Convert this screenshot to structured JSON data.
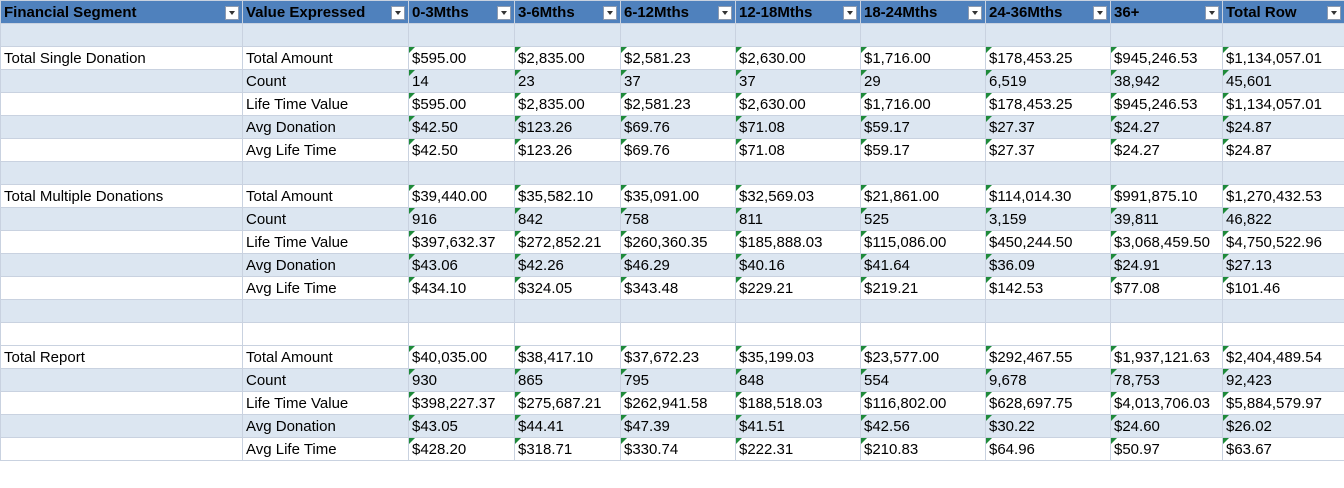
{
  "headers": [
    "Financial Segment",
    "Value Expressed",
    "0-3Mths",
    "3-6Mths",
    "6-12Mths",
    "12-18Mths",
    "18-24Mths",
    "24-36Mths",
    "36+",
    "Total Row"
  ],
  "rows": [
    {
      "band": true,
      "cells": [
        "",
        "",
        "",
        "",
        "",
        "",
        "",
        "",
        "",
        ""
      ]
    },
    {
      "band": false,
      "cells": [
        "Total Single Donation",
        "Total Amount",
        "$595.00",
        "$2,835.00",
        "$2,581.23",
        "$2,630.00",
        "$1,716.00",
        "$178,453.25",
        "$945,246.53",
        "$1,134,057.01"
      ]
    },
    {
      "band": true,
      "cells": [
        "",
        "Count",
        "14",
        "23",
        "37",
        "37",
        "29",
        "6,519",
        "38,942",
        "45,601"
      ]
    },
    {
      "band": false,
      "cells": [
        "",
        "Life Time Value",
        "$595.00",
        "$2,835.00",
        "$2,581.23",
        "$2,630.00",
        "$1,716.00",
        "$178,453.25",
        "$945,246.53",
        "$1,134,057.01"
      ]
    },
    {
      "band": true,
      "cells": [
        "",
        "Avg Donation",
        "$42.50",
        "$123.26",
        "$69.76",
        "$71.08",
        "$59.17",
        "$27.37",
        "$24.27",
        "$24.87"
      ]
    },
    {
      "band": false,
      "cells": [
        "",
        "Avg Life Time",
        "$42.50",
        "$123.26",
        "$69.76",
        "$71.08",
        "$59.17",
        "$27.37",
        "$24.27",
        "$24.87"
      ]
    },
    {
      "band": true,
      "cells": [
        "",
        "",
        "",
        "",
        "",
        "",
        "",
        "",
        "",
        ""
      ]
    },
    {
      "band": false,
      "cells": [
        "Total Multiple Donations",
        "Total Amount",
        "$39,440.00",
        "$35,582.10",
        "$35,091.00",
        "$32,569.03",
        "$21,861.00",
        "$114,014.30",
        "$991,875.10",
        "$1,270,432.53"
      ]
    },
    {
      "band": true,
      "cells": [
        "",
        "Count",
        "916",
        "842",
        "758",
        "811",
        "525",
        "3,159",
        "39,811",
        "46,822"
      ]
    },
    {
      "band": false,
      "cells": [
        "",
        "Life Time Value",
        "$397,632.37",
        "$272,852.21",
        "$260,360.35",
        "$185,888.03",
        "$115,086.00",
        "$450,244.50",
        "$3,068,459.50",
        "$4,750,522.96"
      ]
    },
    {
      "band": true,
      "cells": [
        "",
        "Avg Donation",
        "$43.06",
        "$42.26",
        "$46.29",
        "$40.16",
        "$41.64",
        "$36.09",
        "$24.91",
        "$27.13"
      ]
    },
    {
      "band": false,
      "cells": [
        "",
        "Avg Life Time",
        "$434.10",
        "$324.05",
        "$343.48",
        "$229.21",
        "$219.21",
        "$142.53",
        "$77.08",
        "$101.46"
      ]
    },
    {
      "band": true,
      "cells": [
        "",
        "",
        "",
        "",
        "",
        "",
        "",
        "",
        "",
        ""
      ]
    },
    {
      "band": false,
      "cells": [
        "",
        "",
        "",
        "",
        "",
        "",
        "",
        "",
        "",
        ""
      ]
    },
    {
      "band": false,
      "cells": [
        "Total Report",
        "Total Amount",
        "$40,035.00",
        "$38,417.10",
        "$37,672.23",
        "$35,199.03",
        "$23,577.00",
        "$292,467.55",
        "$1,937,121.63",
        "$2,404,489.54"
      ]
    },
    {
      "band": true,
      "cells": [
        "",
        "Count",
        "930",
        "865",
        "795",
        "848",
        "554",
        "9,678",
        "78,753",
        "92,423"
      ]
    },
    {
      "band": false,
      "cells": [
        "",
        "Life Time Value",
        "$398,227.37",
        "$275,687.21",
        "$262,941.58",
        "$188,518.03",
        "$116,802.00",
        "$628,697.75",
        "$4,013,706.03",
        "$5,884,579.97"
      ]
    },
    {
      "band": true,
      "cells": [
        "",
        "Avg Donation",
        "$43.05",
        "$44.41",
        "$47.39",
        "$41.51",
        "$42.56",
        "$30.22",
        "$24.60",
        "$26.02"
      ]
    },
    {
      "band": false,
      "cells": [
        "",
        "Avg Life Time",
        "$428.20",
        "$318.71",
        "$330.74",
        "$222.31",
        "$210.83",
        "$64.96",
        "$50.97",
        "$63.67"
      ]
    }
  ],
  "colors": {
    "header_bg": "#4f81bd",
    "band_bg": "#dce6f1",
    "error_indicator": "#1e8a3a"
  },
  "icons": {
    "filter": "filter-dropdown-icon",
    "error_indicator": "number-stored-as-text-indicator-icon"
  }
}
